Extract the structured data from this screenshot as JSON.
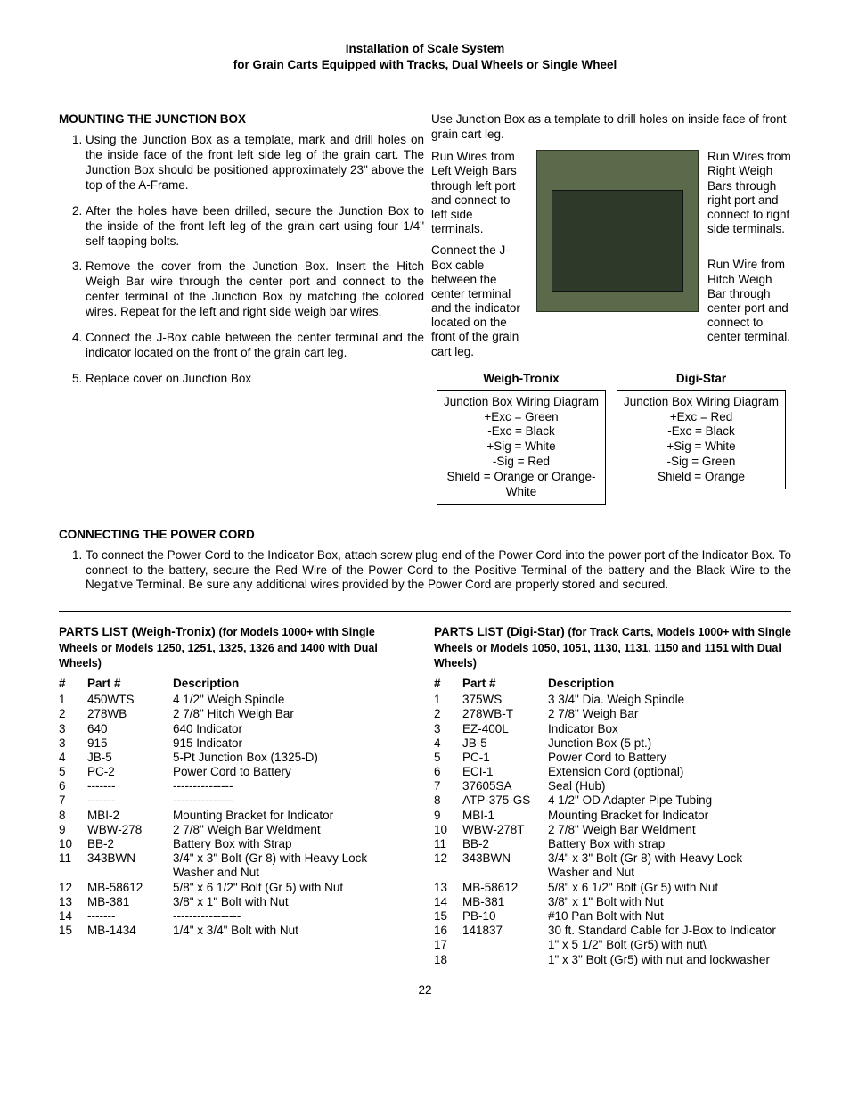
{
  "doc_title_line1": "Installation of Scale System",
  "doc_title_line2": "for Grain Carts Equipped with Tracks, Dual Wheels or Single Wheel",
  "mounting": {
    "heading": "MOUNTING THE JUNCTION BOX",
    "steps": [
      "Using the Junction Box as a template, mark and drill holes on the inside face of the front left side leg of the grain cart.  The Junction Box should be positioned approximately 23\" above the top of the A-Frame.",
      "After the holes have been drilled, secure the Junction Box to the inside of the front left leg of the grain cart using four 1/4\" self tapping bolts.",
      "Remove the cover from the Junction Box.  Insert the Hitch Weigh Bar wire through the center port and connect to the center terminal of the Junction Box by matching the colored wires.  Repeat for the left and right side weigh bar wires.",
      "Connect the J-Box cable between the center terminal and the indicator located on the front of the grain cart leg.",
      "Replace cover on Junction Box"
    ]
  },
  "diagram": {
    "caption_top": "Use Junction Box as a template to drill holes on inside face of front grain cart leg.",
    "left_callout1": "Run Wires from Left Weigh Bars through left port and connect to left side terminals.",
    "left_callout2": "Connect the J-Box cable between the center terminal and the indicator located on the front of the grain cart leg.",
    "right_callout1": "Run Wires from Right Weigh Bars through right port and connect to right side terminals.",
    "right_callout2": "Run Wire from Hitch Weigh Bar through center port and connect to center terminal."
  },
  "wiring": {
    "col1_title": "Weigh-Tronix",
    "col2_title": "Digi-Star",
    "col1_lines": [
      "Junction Box Wiring Diagram",
      "+Exc = Green",
      "-Exc = Black",
      "+Sig = White",
      "-Sig = Red",
      "Shield = Orange or Orange-White"
    ],
    "col2_lines": [
      "Junction Box Wiring Diagram",
      "+Exc = Red",
      "-Exc = Black",
      "+Sig = White",
      "-Sig = Green",
      "Shield = Orange"
    ]
  },
  "power": {
    "heading": "CONNECTING THE POWER CORD",
    "step": "To connect the Power Cord to the Indicator Box, attach screw plug end of the Power Cord into the power port of the Indicator Box.  To connect to the battery, secure the Red Wire of the Power Cord to the Positive Terminal of the battery and the Black Wire to the Negative Terminal.  Be sure any additional wires provided by the Power Cord are properly stored and secured."
  },
  "parts_left": {
    "title_main": "PARTS LIST (Weigh-Tronix) ",
    "title_sub": "(for Models 1000+ with Single Wheels or Models 1250, 1251, 1325, 1326 and 1400 with Dual Wheels)",
    "headers": [
      "#",
      "Part #",
      "Description"
    ],
    "rows": [
      [
        "1",
        "450WTS",
        "4 1/2\" Weigh Spindle"
      ],
      [
        "2",
        "278WB",
        "2 7/8\" Hitch Weigh Bar"
      ],
      [
        "3",
        "640",
        "640 Indicator"
      ],
      [
        "3",
        "915",
        "915 Indicator"
      ],
      [
        "4",
        "JB-5",
        "5-Pt Junction Box (1325-D)"
      ],
      [
        "5",
        "PC-2",
        "Power Cord to Battery"
      ],
      [
        "6",
        "-------",
        "---------------"
      ],
      [
        "7",
        "-------",
        "---------------"
      ],
      [
        "8",
        "MBI-2",
        "Mounting Bracket for Indicator"
      ],
      [
        "9",
        "WBW-278",
        "2 7/8\" Weigh Bar Weldment"
      ],
      [
        "10",
        "BB-2",
        "Battery Box with Strap"
      ],
      [
        "11",
        "343BWN",
        "3/4\" x 3\" Bolt (Gr 8) with Heavy Lock Washer and Nut"
      ],
      [
        "12",
        "MB-58612",
        "5/8\" x 6 1/2\" Bolt (Gr 5) with Nut"
      ],
      [
        "13",
        "MB-381",
        "3/8\" x 1\" Bolt with Nut"
      ],
      [
        "14",
        "-------",
        "-----------------"
      ],
      [
        "15",
        "MB-1434",
        "1/4\" x 3/4\" Bolt with Nut"
      ]
    ]
  },
  "parts_right": {
    "title_main": "PARTS LIST (Digi-Star) ",
    "title_sub": "(for Track Carts, Models 1000+ with Single Wheels or Models 1050, 1051, 1130, 1131, 1150 and 1151 with Dual Wheels)",
    "headers": [
      "#",
      "Part #",
      "Description"
    ],
    "rows": [
      [
        "1",
        "375WS",
        "3 3/4\" Dia. Weigh Spindle"
      ],
      [
        "2",
        "278WB-T",
        "2 7/8\" Weigh Bar"
      ],
      [
        "3",
        "EZ-400L",
        "Indicator Box"
      ],
      [
        "4",
        "JB-5",
        "Junction Box (5 pt.)"
      ],
      [
        "5",
        "PC-1",
        "Power Cord to Battery"
      ],
      [
        "6",
        "ECI-1",
        "Extension Cord (optional)"
      ],
      [
        "7",
        "37605SA",
        "Seal (Hub)"
      ],
      [
        "8",
        "ATP-375-GS",
        "4 1/2\" OD Adapter Pipe Tubing"
      ],
      [
        "9",
        "MBI-1",
        "Mounting Bracket for Indicator"
      ],
      [
        "10",
        "WBW-278T",
        "2 7/8\" Weigh Bar Weldment"
      ],
      [
        "11",
        "BB-2",
        "Battery Box with strap"
      ],
      [
        "12",
        "343BWN",
        "3/4\" x 3\" Bolt (Gr 8) with Heavy Lock Washer and Nut"
      ],
      [
        "13",
        "MB-58612",
        "5/8\" x 6 1/2\" Bolt (Gr 5) with Nut"
      ],
      [
        "14",
        "MB-381",
        "3/8\" x 1\" Bolt with Nut"
      ],
      [
        "15",
        "PB-10",
        "#10 Pan Bolt with Nut"
      ],
      [
        "16",
        "141837",
        "30 ft. Standard Cable for J-Box to Indicator"
      ],
      [
        "17",
        "",
        "1\" x 5 1/2\" Bolt (Gr5) with nut\\"
      ],
      [
        "18",
        "",
        "1\" x 3\" Bolt (Gr5) with nut and lockwasher"
      ]
    ]
  },
  "page_number": "22"
}
